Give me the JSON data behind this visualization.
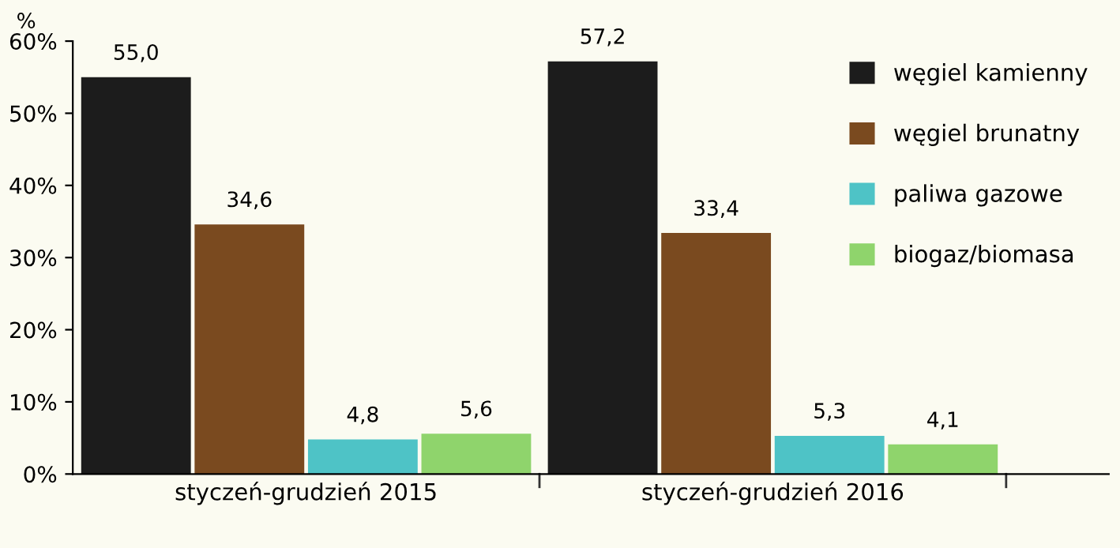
{
  "chart_data": {
    "type": "bar",
    "ylabel": "%",
    "categories": [
      "styczeń-grudzień 2015",
      "styczeń-grudzień 2016"
    ],
    "series": [
      {
        "name": "węgiel kamienny",
        "color": "#1c1c1c",
        "values": [
          55.0,
          57.2
        ],
        "value_labels": [
          "55,0",
          "57,2"
        ]
      },
      {
        "name": "węgiel brunatny",
        "color": "#7a4a1f",
        "values": [
          34.6,
          33.4
        ],
        "value_labels": [
          "34,6",
          "33,4"
        ]
      },
      {
        "name": "paliwa gazowe",
        "color": "#4ec3c6",
        "values": [
          4.8,
          5.3
        ],
        "value_labels": [
          "4,8",
          "5,3"
        ]
      },
      {
        "name": "biogaz/biomasa",
        "color": "#8fd46c",
        "values": [
          5.6,
          4.1
        ],
        "value_labels": [
          "5,6",
          "4,1"
        ]
      }
    ],
    "ylim": [
      0,
      60
    ],
    "yticks": [
      {
        "value": 0,
        "label": "0%"
      },
      {
        "value": 10,
        "label": "10%"
      },
      {
        "value": 20,
        "label": "20%"
      },
      {
        "value": 30,
        "label": "30%"
      },
      {
        "value": 40,
        "label": "40%"
      },
      {
        "value": 50,
        "label": "50%"
      },
      {
        "value": 60,
        "label": "60%"
      }
    ],
    "grid": false,
    "legend": "top right"
  }
}
